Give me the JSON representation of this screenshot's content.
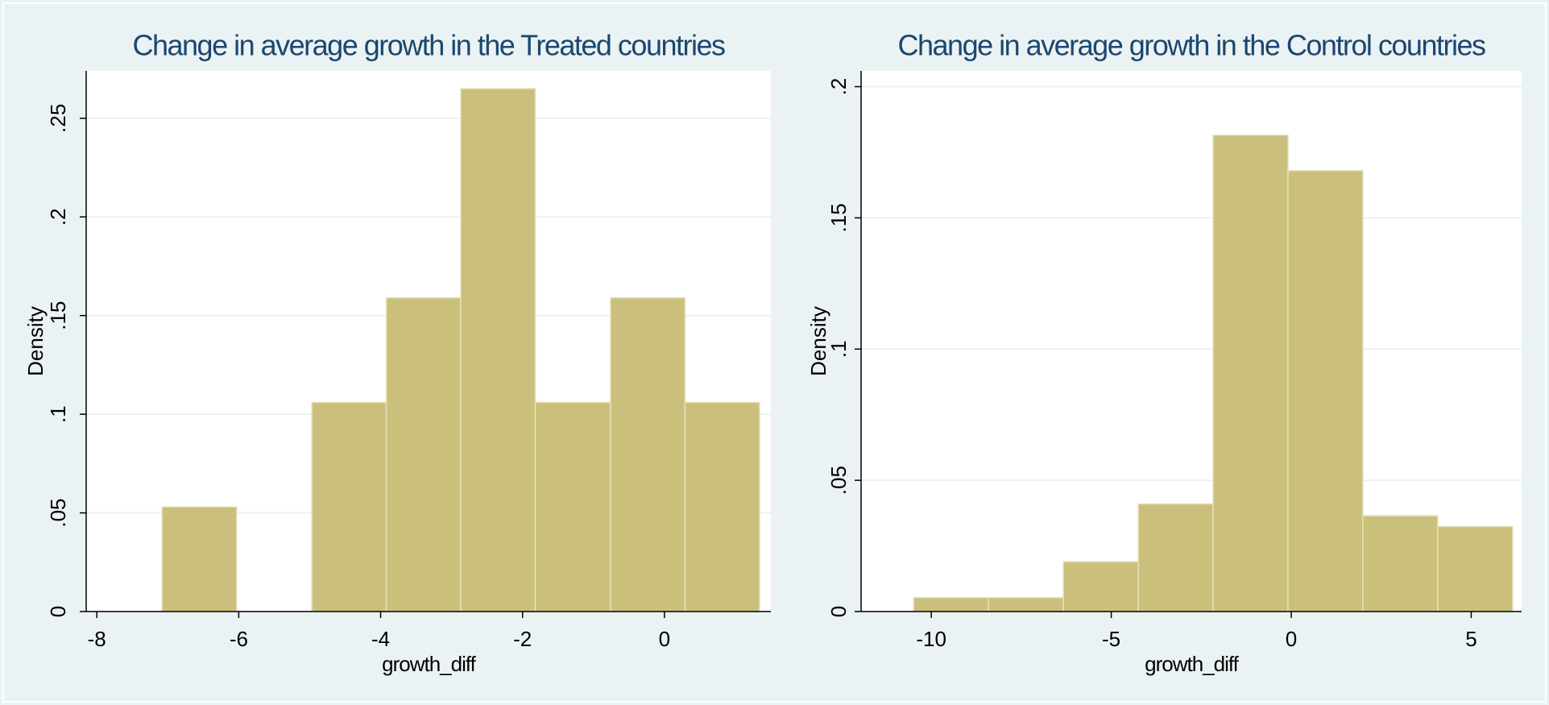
{
  "chart_data": [
    {
      "type": "histogram",
      "title": "Change in average growth in the Treated countries",
      "x_label": "growth_diff",
      "y_label": "Density",
      "bins": [
        -7.08,
        -6.03,
        -4.97,
        -3.92,
        -2.87,
        -1.82,
        -0.76,
        0.29,
        1.34
      ],
      "values": [
        0.053,
        0,
        0.106,
        0.159,
        0.265,
        0.106,
        0.159,
        0.106
      ],
      "color": "#cac07c",
      "xlim": [
        -8.15,
        1.5
      ],
      "xticks": [
        -8,
        -6,
        -4,
        -2,
        0
      ],
      "ylim": [
        0,
        0.274
      ],
      "yticks": [
        0,
        {
          "value": 0.05,
          "label": ".05"
        },
        {
          "value": 0.1,
          "label": ".1"
        },
        {
          "value": 0.15,
          "label": ".15"
        },
        {
          "value": 0.2,
          "label": ".2"
        },
        {
          "value": 0.25,
          "label": ".25"
        }
      ],
      "grid": true
    },
    {
      "type": "histogram",
      "title": "Change in average growth in the Control countries",
      "x_label": "growth_diff",
      "y_label": "Density",
      "bins": [
        -10.49,
        -8.41,
        -6.33,
        -4.25,
        -2.17,
        -0.09,
        1.99,
        4.07,
        6.15
      ],
      "values": [
        0.0053,
        0.0053,
        0.019,
        0.041,
        0.1815,
        0.168,
        0.0365,
        0.0324
      ],
      "color": "#cac07c",
      "xlim": [
        -11.95,
        6.4
      ],
      "xticks": [
        -10,
        -5,
        0,
        5
      ],
      "ylim": [
        0,
        0.206
      ],
      "yticks": [
        0,
        {
          "value": 0.05,
          "label": ".05"
        },
        {
          "value": 0.1,
          "label": ".1"
        },
        {
          "value": 0.15,
          "label": ".15"
        },
        {
          "value": 0.2,
          "label": ".2"
        }
      ],
      "grid": true
    }
  ]
}
